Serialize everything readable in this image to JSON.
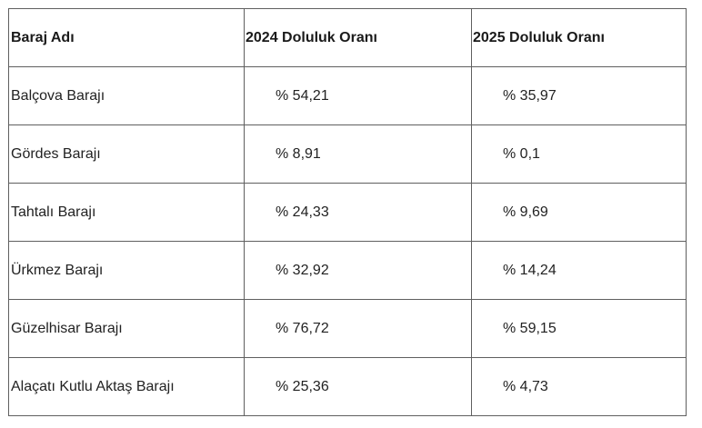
{
  "table": {
    "headers": [
      "Baraj Adı",
      "2024 Doluluk Oranı",
      "2025 Doluluk Oranı"
    ],
    "rows": [
      {
        "name": "Balçova Barajı",
        "y2024": "% 54,21",
        "y2025": "% 35,97"
      },
      {
        "name": "Gördes Barajı",
        "y2024": "% 8,91",
        "y2025": "% 0,1"
      },
      {
        "name": "Tahtalı Barajı",
        "y2024": "% 24,33",
        "y2025": "% 9,69"
      },
      {
        "name": "Ürkmez Barajı",
        "y2024": "% 32,92",
        "y2025": "% 14,24"
      },
      {
        "name": "Güzelhisar Barajı",
        "y2024": "% 76,72",
        "y2025": "% 59,15"
      },
      {
        "name": "Alaçatı Kutlu Aktaş Barajı",
        "y2024": "% 25,36",
        "y2025": "% 4,73"
      }
    ]
  }
}
